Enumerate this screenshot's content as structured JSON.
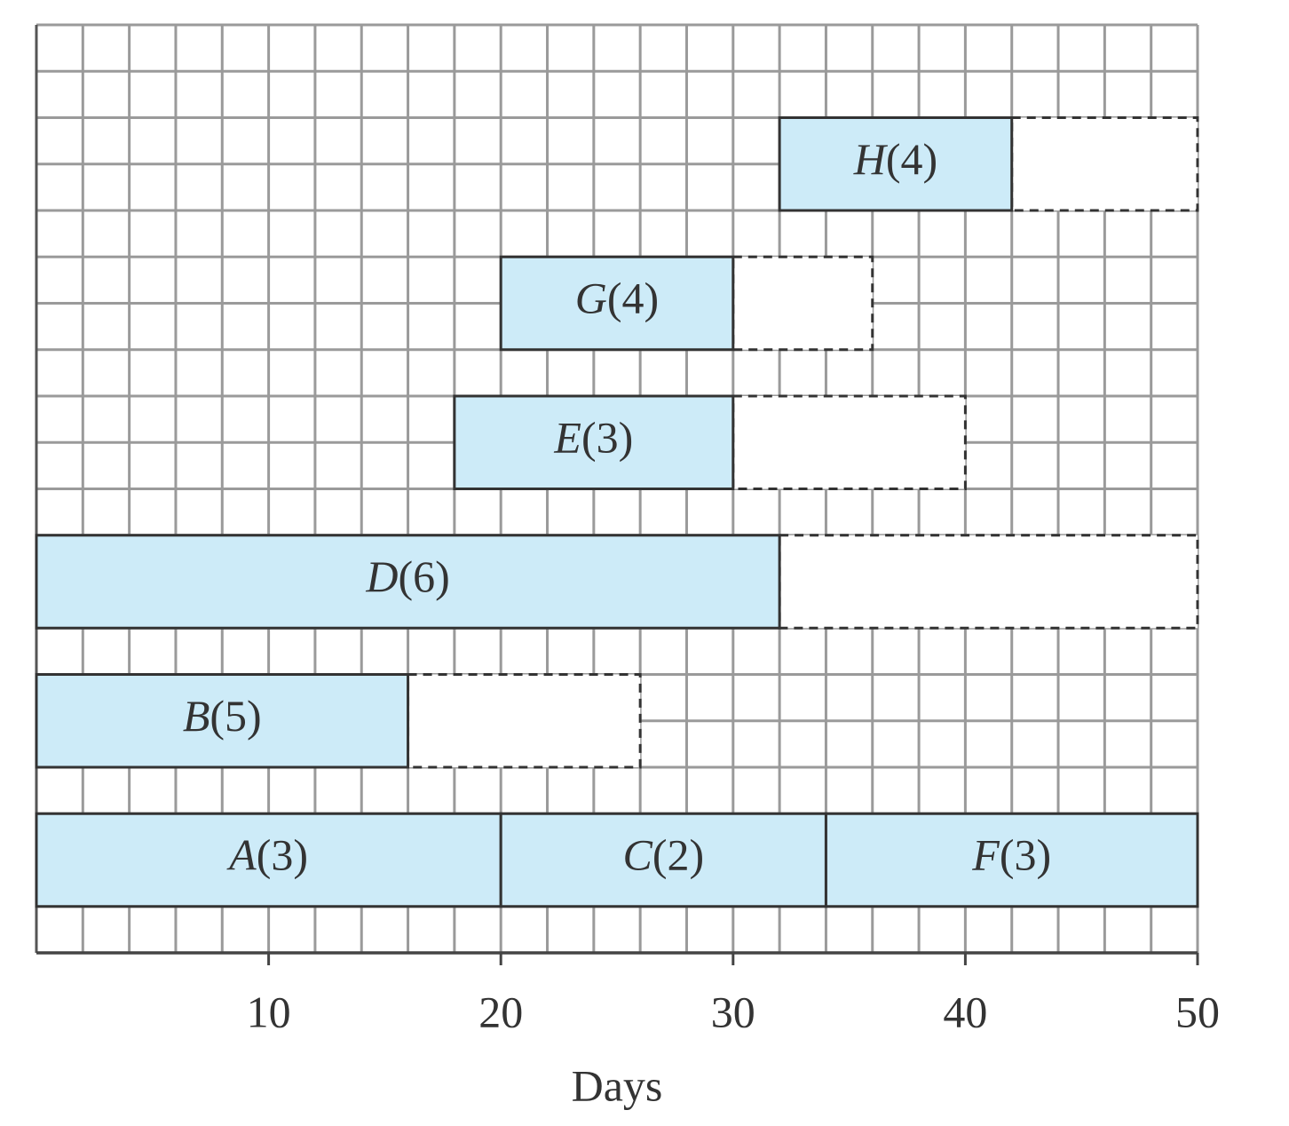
{
  "chart_data": {
    "type": "gantt",
    "xlabel": "Days",
    "xlim": [
      0,
      50
    ],
    "xticks": [
      10,
      20,
      30,
      40,
      50
    ],
    "grid": true,
    "grid_step": 2,
    "color": "#cdebf8",
    "lanes": [
      [
        {
          "label": "H(4)",
          "start": 32,
          "end": 42,
          "float_end": 50
        }
      ],
      [
        {
          "label": "G(4)",
          "start": 20,
          "end": 30,
          "float_end": 36
        }
      ],
      [
        {
          "label": "E(3)",
          "start": 18,
          "end": 30,
          "float_end": 40
        }
      ],
      [
        {
          "label": "D(6)",
          "start": 0,
          "end": 32,
          "float_end": 50
        }
      ],
      [
        {
          "label": "B(5)",
          "start": 0,
          "end": 16,
          "float_end": 26
        }
      ],
      [
        {
          "label": "A(3)",
          "start": 0,
          "end": 20
        },
        {
          "label": "C(2)",
          "start": 20,
          "end": 34
        },
        {
          "label": "F(3)",
          "start": 34,
          "end": 50
        }
      ]
    ]
  }
}
